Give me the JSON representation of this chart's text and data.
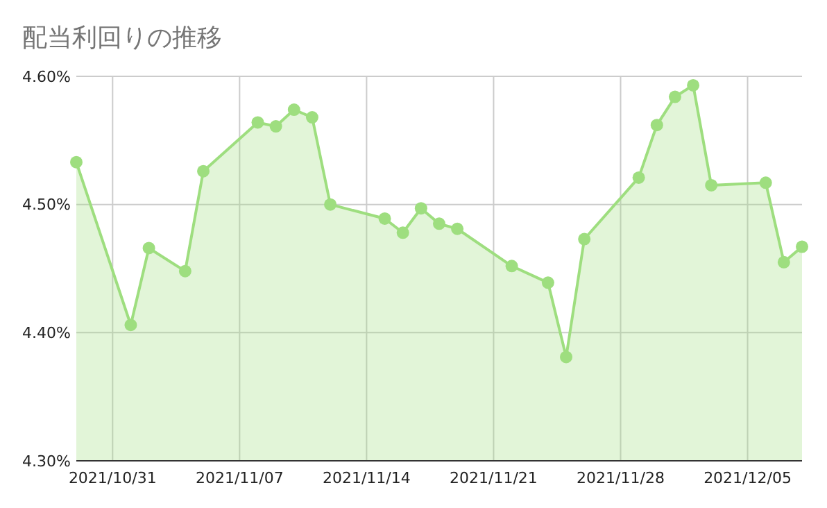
{
  "chart_data": {
    "type": "area",
    "title": "配当利回りの推移",
    "x": [
      "2021-10-29",
      "2021-11-01",
      "2021-11-02",
      "2021-11-04",
      "2021-11-05",
      "2021-11-08",
      "2021-11-09",
      "2021-11-10",
      "2021-11-11",
      "2021-11-12",
      "2021-11-15",
      "2021-11-16",
      "2021-11-17",
      "2021-11-18",
      "2021-11-19",
      "2021-11-22",
      "2021-11-24",
      "2021-11-25",
      "2021-11-26",
      "2021-11-29",
      "2021-11-30",
      "2021-12-01",
      "2021-12-02",
      "2021-12-03",
      "2021-12-06",
      "2021-12-07",
      "2021-12-08"
    ],
    "series": [
      {
        "color": "#9ede7f",
        "values": [
          4.533,
          4.406,
          4.466,
          4.448,
          4.526,
          4.564,
          4.561,
          4.574,
          4.568,
          4.5,
          4.489,
          4.478,
          4.497,
          4.485,
          4.481,
          4.452,
          4.439,
          4.381,
          4.473,
          4.521,
          4.562,
          4.584,
          4.593,
          4.515,
          4.517,
          4.455,
          4.467
        ]
      }
    ],
    "xlim": [
      "2021-10-29",
      "2021-12-08"
    ],
    "xticks": [
      {
        "value": "2021-10-31",
        "label": "2021/10/31"
      },
      {
        "value": "2021-11-07",
        "label": "2021/11/07"
      },
      {
        "value": "2021-11-14",
        "label": "2021/11/14"
      },
      {
        "value": "2021-11-21",
        "label": "2021/11/21"
      },
      {
        "value": "2021-11-28",
        "label": "2021/11/28"
      },
      {
        "value": "2021-12-05",
        "label": "2021/12/05"
      }
    ],
    "ylim": [
      4.3,
      4.6
    ],
    "yticks": [
      {
        "value": 4.3,
        "label": "4.30%"
      },
      {
        "value": 4.4,
        "label": "4.40%"
      },
      {
        "value": 4.5,
        "label": "4.50%"
      },
      {
        "value": 4.6,
        "label": "4.60%"
      }
    ],
    "grid": true,
    "marker": "circle",
    "line_style": "solid"
  }
}
